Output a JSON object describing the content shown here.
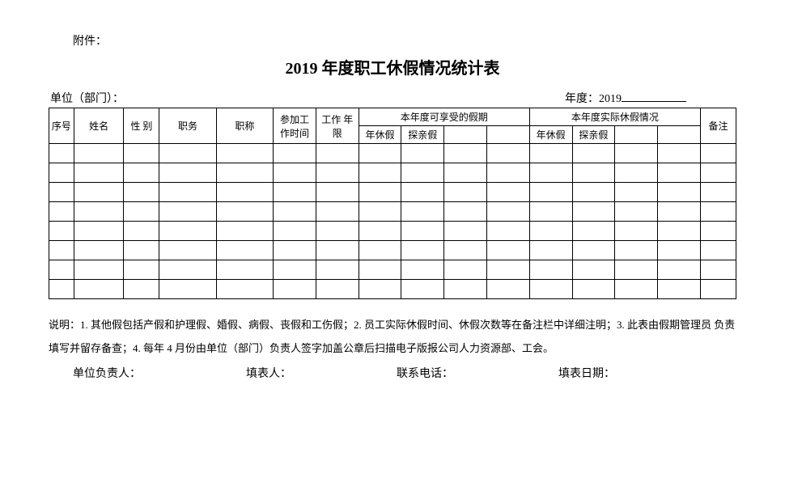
{
  "attachment_label": "附件：",
  "title": "2019 年度职工休假情况统计表",
  "meta": {
    "unit_label": "单位（部门）：",
    "year_label": "年度：",
    "year_value": "2019"
  },
  "headers": {
    "seq": "序号",
    "name": "姓名",
    "gender": "性 别",
    "position": "职务",
    "title": "职称",
    "join_time": "参加工作时间",
    "work_years": "工作 年限",
    "entitled_section": "本年度可享受的假期",
    "actual_section": "本年度实际休假情况",
    "remark": "备注",
    "annual_leave": "年休假",
    "family_leave": "探亲假"
  },
  "data_row_count": 8,
  "notes_text": "说明：1. 其他假包括产假和护理假、婚假、病假、丧假和工伤假；2. 员工实际休假时间、休假次数等在备注栏中详细注明；3. 此表由假期管理员 负责填写并留存备查；4. 每年 4 月份由单位（部门）负责人签字加盖公章后扫描电子版报公司人力资源部、工会。",
  "signatures": {
    "unit_leader": "单位负责人：",
    "filler": "填表人：",
    "phone": "联系电话：",
    "date": "填表日期："
  },
  "column_widths_pct": [
    3.5,
    7,
    5,
    8,
    8,
    6,
    6,
    6,
    6,
    6,
    6,
    6,
    6,
    6,
    6,
    5
  ],
  "colors": {
    "background": "#ffffff",
    "text": "#000000",
    "border": "#000000"
  }
}
